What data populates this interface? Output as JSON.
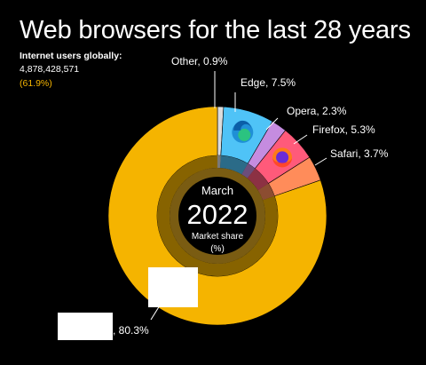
{
  "header": {
    "title": "Web browsers for the last 28 years",
    "internet_users_label": "Internet users globally:",
    "internet_users_count": "4,878,428,571",
    "internet_users_pct": "(61.9%)"
  },
  "center": {
    "month": "March",
    "year": "2022",
    "caption_line1": "Market share",
    "caption_line2": "(%)"
  },
  "chart_data": {
    "type": "pie",
    "variant": "donut",
    "title": "Web browsers for the last 28 years",
    "slices": [
      {
        "name": "Other",
        "value": 0.9,
        "label": "Other, 0.9%",
        "color": "#dcdcdc"
      },
      {
        "name": "Edge",
        "value": 7.5,
        "label": "Edge, 7.5%",
        "color": "#4fc3f7",
        "icon": "edge-icon"
      },
      {
        "name": "Opera",
        "value": 2.3,
        "label": "Opera, 2.3%",
        "color": "#c58ce0"
      },
      {
        "name": "Firefox",
        "value": 5.3,
        "label": "Firefox, 5.3%",
        "color": "#ff5a7a",
        "icon": "firefox-icon"
      },
      {
        "name": "Safari",
        "value": 3.7,
        "label": "Safari, 3.7%",
        "color": "#ff8c5a"
      },
      {
        "name": "",
        "value": 80.3,
        "label": ", 80.3%",
        "color": "#f5b400"
      }
    ]
  },
  "colors": {
    "background": "#000000",
    "accent": "#f5b400",
    "center_ring": "#7a5c12"
  }
}
